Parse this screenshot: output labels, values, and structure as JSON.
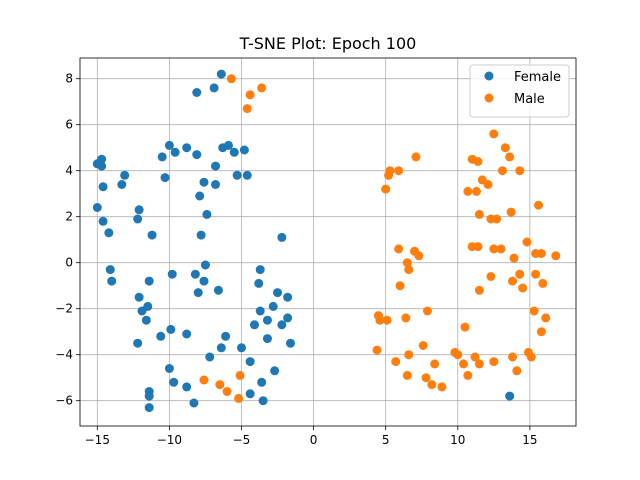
{
  "chart_data": {
    "type": "scatter",
    "title": "T-SNE Plot: Epoch 100",
    "xlabel": "",
    "ylabel": "",
    "xlim": [
      -16.2,
      18.2
    ],
    "ylim": [
      -7.1,
      8.9
    ],
    "xticks": [
      -15,
      -10,
      -5,
      0,
      5,
      10,
      15
    ],
    "yticks": [
      -6,
      -4,
      -2,
      0,
      2,
      4,
      6,
      8
    ],
    "grid": true,
    "legend_position": "top-right",
    "series": [
      {
        "name": "Female",
        "color": "#1f77b4",
        "points": [
          [
            -6.4,
            8.2
          ],
          [
            -6.9,
            7.6
          ],
          [
            -8.1,
            7.4
          ],
          [
            -15,
            4.3
          ],
          [
            -14.7,
            4.5
          ],
          [
            -14.7,
            4.2
          ],
          [
            -13.3,
            3.4
          ],
          [
            -13.1,
            3.8
          ],
          [
            -14.6,
            3.3
          ],
          [
            -15,
            2.4
          ],
          [
            -14.6,
            1.8
          ],
          [
            -14.2,
            1.3
          ],
          [
            -12.1,
            2.3
          ],
          [
            -12.2,
            1.9
          ],
          [
            -11.2,
            1.2
          ],
          [
            -10.5,
            4.6
          ],
          [
            -10,
            5.1
          ],
          [
            -9.6,
            4.8
          ],
          [
            -8.8,
            5
          ],
          [
            -8.1,
            4.7
          ],
          [
            -10.3,
            3.7
          ],
          [
            -7.6,
            3.5
          ],
          [
            -7.9,
            2.9
          ],
          [
            -6.8,
            4.2
          ],
          [
            -6.8,
            3.4
          ],
          [
            -7.4,
            2.1
          ],
          [
            -7.8,
            1.2
          ],
          [
            -6.3,
            5
          ],
          [
            -5.9,
            5.1
          ],
          [
            -5.5,
            4.8
          ],
          [
            -4.8,
            4.9
          ],
          [
            -5.3,
            3.8
          ],
          [
            -4.6,
            3.8
          ],
          [
            -2.2,
            1.1
          ],
          [
            -14.1,
            -0.3
          ],
          [
            -14,
            -0.8
          ],
          [
            -11.4,
            -0.8
          ],
          [
            -12.1,
            -1.5
          ],
          [
            -11.9,
            -2.1
          ],
          [
            -11.5,
            -1.9
          ],
          [
            -11.6,
            -2.5
          ],
          [
            -12.2,
            -3.5
          ],
          [
            -10.6,
            -3.2
          ],
          [
            -9.9,
            -2.9
          ],
          [
            -9.8,
            -0.5
          ],
          [
            -8.8,
            -3.1
          ],
          [
            -8.2,
            -0.5
          ],
          [
            -7.5,
            -0.1
          ],
          [
            -7.6,
            -0.8
          ],
          [
            -8.0,
            -1.3
          ],
          [
            -6.6,
            -1.2
          ],
          [
            -7.2,
            -4.1
          ],
          [
            -6.4,
            -3.7
          ],
          [
            -6.1,
            -3.2
          ],
          [
            -5.0,
            -3.7
          ],
          [
            -10.0,
            -4.6
          ],
          [
            -9.7,
            -5.2
          ],
          [
            -8.8,
            -5.4
          ],
          [
            -8.3,
            -6.1
          ],
          [
            -11.4,
            -5.6
          ],
          [
            -11.4,
            -5.8
          ],
          [
            -11.4,
            -6.3
          ],
          [
            -4.4,
            -4.3
          ],
          [
            -4.4,
            -5.7
          ],
          [
            -3.6,
            -5.2
          ],
          [
            -3.5,
            -6.0
          ],
          [
            -3.7,
            -0.3
          ],
          [
            -3.8,
            -0.9
          ],
          [
            -3.7,
            -2.1
          ],
          [
            -4.1,
            -2.7
          ],
          [
            -3.2,
            -2.5
          ],
          [
            -2.8,
            -1.9
          ],
          [
            -2.5,
            -1.3
          ],
          [
            -1.8,
            -1.5
          ],
          [
            -2.2,
            -2.7
          ],
          [
            -1.8,
            -2.4
          ],
          [
            -3.2,
            -3.3
          ],
          [
            -1.6,
            -3.5
          ],
          [
            -2.7,
            -4.7
          ],
          [
            13.6,
            -5.8
          ]
        ]
      },
      {
        "name": "Male",
        "color": "#ff7f0e",
        "points": [
          [
            -5.7,
            8.0
          ],
          [
            -3.6,
            7.6
          ],
          [
            -4.4,
            7.3
          ],
          [
            -4.6,
            6.7
          ],
          [
            -7.6,
            -5.1
          ],
          [
            -6.5,
            -5.3
          ],
          [
            -5.1,
            -4.9
          ],
          [
            -6.0,
            -5.6
          ],
          [
            -5.2,
            -5.9
          ],
          [
            12.5,
            5.6
          ],
          [
            13.3,
            5.0
          ],
          [
            13.6,
            4.6
          ],
          [
            11.0,
            4.5
          ],
          [
            11.4,
            4.4
          ],
          [
            10.7,
            3.1
          ],
          [
            11.7,
            3.6
          ],
          [
            11.3,
            3.1
          ],
          [
            12.1,
            3.4
          ],
          [
            13.1,
            4.0
          ],
          [
            14.3,
            4.0
          ],
          [
            11.5,
            2.1
          ],
          [
            12.3,
            1.9
          ],
          [
            12.7,
            1.9
          ],
          [
            13.7,
            2.2
          ],
          [
            15.6,
            2.5
          ],
          [
            11.0,
            0.7
          ],
          [
            11.4,
            0.7
          ],
          [
            12.5,
            0.6
          ],
          [
            13.0,
            0.6
          ],
          [
            14.8,
            0.9
          ],
          [
            13.9,
            0.2
          ],
          [
            15.4,
            0.4
          ],
          [
            15.8,
            0.4
          ],
          [
            16.8,
            0.3
          ],
          [
            12.3,
            -0.6
          ],
          [
            14.3,
            -0.5
          ],
          [
            13.8,
            -0.8
          ],
          [
            14.5,
            -1.1
          ],
          [
            15.4,
            -0.5
          ],
          [
            15.9,
            -0.9
          ],
          [
            11.5,
            -1.2
          ],
          [
            15.3,
            -2.1
          ],
          [
            16.1,
            -2.4
          ],
          [
            15.8,
            -3.0
          ],
          [
            10.5,
            -2.8
          ],
          [
            10.0,
            -4.0
          ],
          [
            11.2,
            -4.1
          ],
          [
            10.4,
            -4.4
          ],
          [
            11.5,
            -4.4
          ],
          [
            12.5,
            -4.3
          ],
          [
            13.8,
            -4.1
          ],
          [
            14.1,
            -4.7
          ],
          [
            14.9,
            -3.9
          ],
          [
            15.1,
            -4.1
          ],
          [
            10.7,
            -4.9
          ],
          [
            5.0,
            3.2
          ],
          [
            5.2,
            3.8
          ],
          [
            5.3,
            4.0
          ],
          [
            5.9,
            4.0
          ],
          [
            7.1,
            4.6
          ],
          [
            5.9,
            0.6
          ],
          [
            6.5,
            0.0
          ],
          [
            6.6,
            -0.3
          ],
          [
            7.0,
            0.5
          ],
          [
            7.3,
            0.3
          ],
          [
            6.0,
            -1.0
          ],
          [
            4.5,
            -2.3
          ],
          [
            4.6,
            -2.5
          ],
          [
            5.1,
            -2.5
          ],
          [
            6.4,
            -2.4
          ],
          [
            7.9,
            -2.1
          ],
          [
            4.4,
            -3.8
          ],
          [
            5.7,
            -4.3
          ],
          [
            6.6,
            -4.0
          ],
          [
            7.6,
            -3.6
          ],
          [
            8.4,
            -4.4
          ],
          [
            6.5,
            -4.9
          ],
          [
            7.8,
            -5.0
          ],
          [
            8.2,
            -5.3
          ],
          [
            8.9,
            -5.4
          ],
          [
            9.8,
            -3.9
          ]
        ]
      }
    ]
  }
}
